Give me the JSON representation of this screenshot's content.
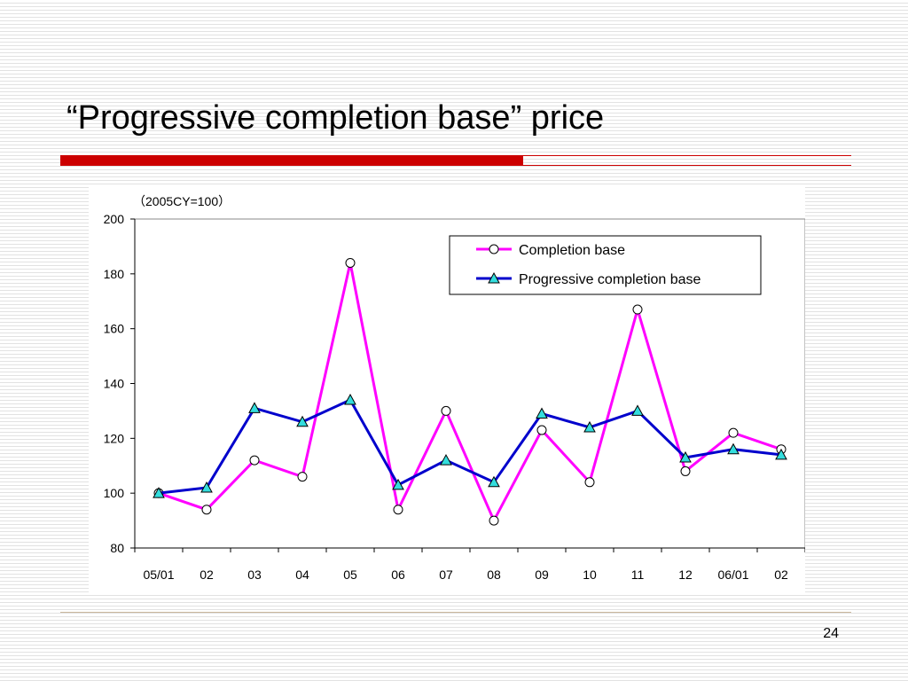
{
  "slide": {
    "title": "“Progressive completion base” price",
    "page_number": "24"
  },
  "colors": {
    "title_rule": "#cc0000",
    "completion_base": "#ff00ff",
    "progressive_completion_base": "#0000cc",
    "triangle_fill": "#33dddd"
  },
  "chart_data": {
    "type": "line",
    "unit_label": "（2005CY=100）",
    "categories": [
      "05/01",
      "02",
      "03",
      "04",
      "05",
      "06",
      "07",
      "08",
      "09",
      "10",
      "11",
      "12",
      "06/01",
      "02"
    ],
    "ylim": [
      80,
      200
    ],
    "yticks": [
      80,
      100,
      120,
      140,
      160,
      180,
      200
    ],
    "grid": false,
    "legend_position": "top-right",
    "series": [
      {
        "name": "Completion base",
        "marker": "circle",
        "color": "#ff00ff",
        "values": [
          100,
          94,
          112,
          106,
          184,
          94,
          130,
          90,
          123,
          104,
          167,
          108,
          122,
          116
        ]
      },
      {
        "name": "Progressive completion base",
        "marker": "triangle",
        "color": "#0000cc",
        "values": [
          100,
          102,
          131,
          126,
          134,
          103,
          112,
          104,
          129,
          124,
          130,
          113,
          116,
          114
        ]
      }
    ]
  }
}
